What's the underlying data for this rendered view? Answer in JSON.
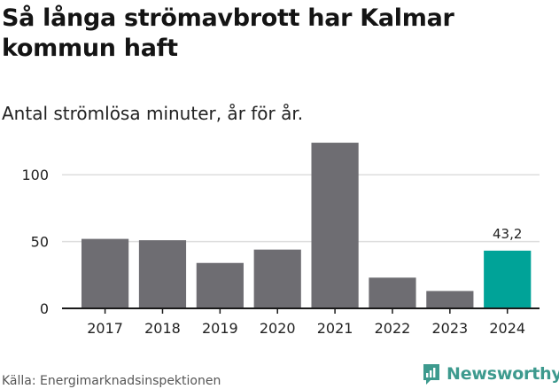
{
  "header": {
    "title": "Så långa strömavbrott har Kalmar kommun haft",
    "subtitle": "Antal strömlösa minuter, år för år."
  },
  "footer": {
    "source": "Källa: Energimarknadsinspektionen",
    "brand": "Newsworthy",
    "brand_icon": "newsworthy-logo-icon"
  },
  "colors": {
    "bar": "#6e6d72",
    "highlight": "#00a398",
    "grid": "#dddddd",
    "axis": "#1a1a1a",
    "brand": "#3d9a8e"
  },
  "chart_data": {
    "type": "bar",
    "categories": [
      "2017",
      "2018",
      "2019",
      "2020",
      "2021",
      "2022",
      "2023",
      "2024"
    ],
    "values": [
      52,
      51,
      34,
      44,
      124,
      23,
      13,
      43.2
    ],
    "highlight_index": 7,
    "data_labels": [
      {
        "index": 7,
        "text": "43,2"
      }
    ],
    "title": "Så långa strömavbrott har Kalmar kommun haft",
    "subtitle": "Antal strömlösa minuter, år för år.",
    "xlabel": "",
    "ylabel": "",
    "ylim": [
      0,
      130
    ],
    "yticks": [
      0,
      50,
      100
    ],
    "grid": true,
    "legend": "none"
  }
}
